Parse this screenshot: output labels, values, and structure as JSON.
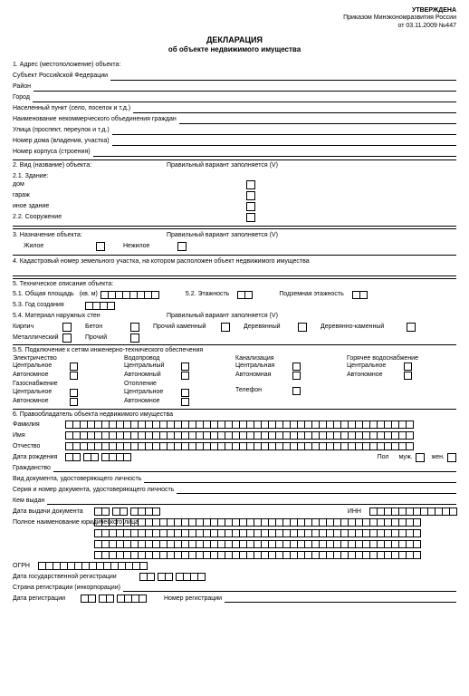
{
  "header": {
    "approved": "УТВЕРЖДЕНА",
    "order": "Приказом Минэкономразвития России",
    "date": "от 03.11.2009 №447"
  },
  "title": "ДЕКЛАРАЦИЯ",
  "subtitle": "об объекте недвижимого имущества",
  "s1": {
    "h": "1. Адрес (местоположение) объекта:",
    "subj": "Субъект Российской Федерации",
    "rayon": "Район",
    "gorod": "Город",
    "nasp": "Населенный пункт (село, поселок и т.д.)",
    "nko": "Наименование некоммерческого объединения граждан",
    "ulica": "Улица (проспект, переулок и т.д.)",
    "nomer_doma": "Номер дома (владения, участка)",
    "nomer_korp": "Номер корпуса (строения)"
  },
  "s2": {
    "h": "2. Вид (название) объекта:",
    "variant": "Правильный вариант заполняется (V)",
    "s21": "2.1. Здание:",
    "dom": "дом",
    "garazh": "гараж",
    "inoe": "иное здание",
    "s22": "2.2. Сооружение"
  },
  "s3": {
    "h": "3. Назначение объекта:",
    "variant": "Правильный вариант заполняется (V)",
    "zhiloe": "Жилое",
    "nezhiloe": "Нежилое"
  },
  "s4": "4. Кадастровый номер земельного участка, на котором расположен объект недвижимого имущества",
  "s5": {
    "h": "5. Техническое описание объекта:",
    "s51": "5.1.   Общая площадь",
    "kvm": "(кв. м)",
    "s52": "5.2. Этажность",
    "podz": "Подземная этажность",
    "s53": "5.3.   Год создания",
    "s54": "5.4.   Материал наружных стен",
    "variant": "Правильный вариант заполняется (V)",
    "kirpich": "Кирпич",
    "beton": "Бетон",
    "prochkam": "Прочий каменный",
    "derev": "Деревянный",
    "derevkam": "Деревянно-каменный",
    "metall": "Металлический",
    "prochiy": "Прочий",
    "s55": "5.5.   Подключение к сетям инженерно-технического обеспечения",
    "elec": "Электричество",
    "vodo": "Водопровод",
    "kanal": "Канализация",
    "gor": "Горячее водоснабжение",
    "centr": "Центральное",
    "centr2": "Центральный",
    "centr3": "Центральная",
    "centr4": "Центральное",
    "avt": "Автономное",
    "avt2": "Автономный",
    "avt3": "Автономная",
    "avt4": "Автономное",
    "gaz": "Газоснабжение",
    "otopl": "Отопление",
    "tel": "Телефон"
  },
  "s6": {
    "h": "6. Правообладатель объекта недвижимого имущества",
    "fam": "Фамилия",
    "imya": "Имя",
    "otch": "Отчество",
    "dob": "Дата рождения",
    "pol": "Пол",
    "muzh": "муж.",
    "zhen": "жен.",
    "grazh": "Гражданство",
    "vid_doc": "Вид документа, удостоверяющего личность",
    "ser_doc": "Серия и номер документа, удостоверяющего личность",
    "kem": "Кем выдан",
    "data_vyd": "Дата выдачи документа",
    "inn": "ИНН",
    "poln_naim": "Полное наименование юридического лица",
    "ogrn": "ОГРН",
    "data_gos": "Дата государственной регистрации",
    "strana": "Страна регистрации (инкорпорации)",
    "data_reg": "Дата регистрации",
    "nomer_reg": "Номер регистрации"
  }
}
